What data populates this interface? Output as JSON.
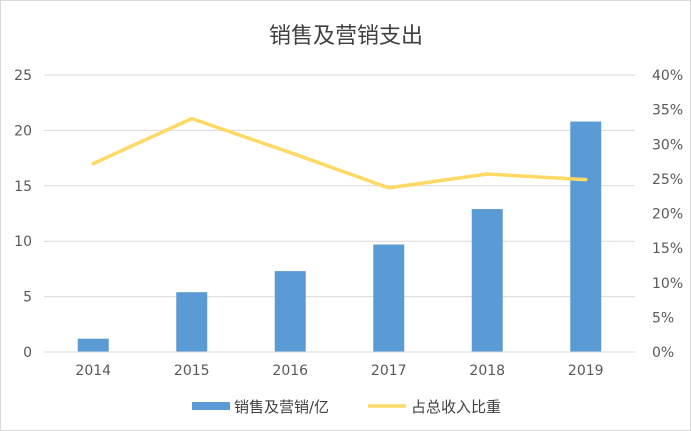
{
  "chart_data": {
    "type": "bar+line",
    "title": "销售及营销支出",
    "categories": [
      "2014",
      "2015",
      "2016",
      "2017",
      "2018",
      "2019"
    ],
    "series": [
      {
        "name": "销售及营销/亿",
        "type": "bar",
        "axis": "left",
        "values": [
          1.2,
          5.4,
          7.3,
          9.7,
          12.9,
          20.8
        ],
        "color": "#5b9bd5"
      },
      {
        "name": "占总收入比重",
        "type": "line",
        "axis": "right",
        "values": [
          27.2,
          33.7,
          28.8,
          23.7,
          25.7,
          24.9
        ],
        "color": "#ffd966"
      }
    ],
    "left_axis": {
      "min": 0,
      "max": 25,
      "ticks": [
        "0",
        "5",
        "10",
        "15",
        "20",
        "25"
      ]
    },
    "right_axis": {
      "min": 0,
      "max": 40,
      "ticks": [
        "0%",
        "5%",
        "10%",
        "15%",
        "20%",
        "25%",
        "30%",
        "35%",
        "40%"
      ]
    },
    "grid": true,
    "legend_position": "bottom"
  }
}
